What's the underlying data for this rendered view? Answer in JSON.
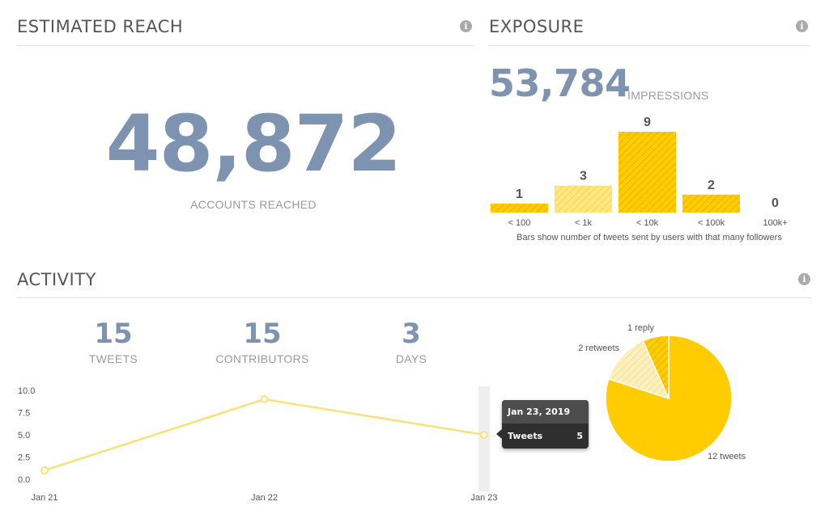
{
  "reach": {
    "title": "ESTIMATED REACH",
    "value": "48,872",
    "label": "ACCOUNTS REACHED",
    "info_icon": "info-icon"
  },
  "exposure": {
    "title": "EXPOSURE",
    "impressions_value": "53,784",
    "impressions_label": "IMPRESSIONS",
    "caption": "Bars show number of tweets sent by users with that many followers",
    "info_icon": "info-icon"
  },
  "activity": {
    "title": "ACTIVITY",
    "info_icon": "info-icon",
    "stats": [
      {
        "value": "15",
        "label": "TWEETS"
      },
      {
        "value": "15",
        "label": "CONTRIBUTORS"
      },
      {
        "value": "3",
        "label": "DAYS"
      }
    ]
  },
  "tooltip": {
    "date": "Jan 23, 2019",
    "series": "Tweets",
    "value": "5"
  },
  "chart_data": [
    {
      "type": "bar",
      "categories": [
        "< 100",
        "< 1k",
        "< 10k",
        "< 100k",
        "100k+"
      ],
      "values": [
        1,
        3,
        9,
        2,
        0
      ],
      "ylim": [
        0,
        9
      ],
      "colors": [
        "#ffcc00",
        "#ffe066",
        "#ffcc00",
        "#ffcc00",
        "#ffcc00"
      ]
    },
    {
      "type": "line",
      "x": [
        "Jan 21",
        "Jan 22",
        "Jan 23"
      ],
      "values": [
        1,
        9,
        5
      ],
      "ylim": [
        0,
        10
      ],
      "yticks": [
        "10.0",
        "7.5",
        "5.0",
        "2.5",
        "0.0"
      ],
      "ytick_values": [
        10,
        7.5,
        5,
        2.5,
        0
      ],
      "highlight_index": 2,
      "color": "#f9e07a"
    },
    {
      "type": "pie",
      "slices": [
        {
          "label": "12 tweets",
          "value": 12,
          "color": "#ffcc00"
        },
        {
          "label": "2 retweets",
          "value": 2,
          "color": "#fbe9a0"
        },
        {
          "label": "1 reply",
          "value": 1,
          "color": "#ffcc00"
        }
      ]
    }
  ]
}
